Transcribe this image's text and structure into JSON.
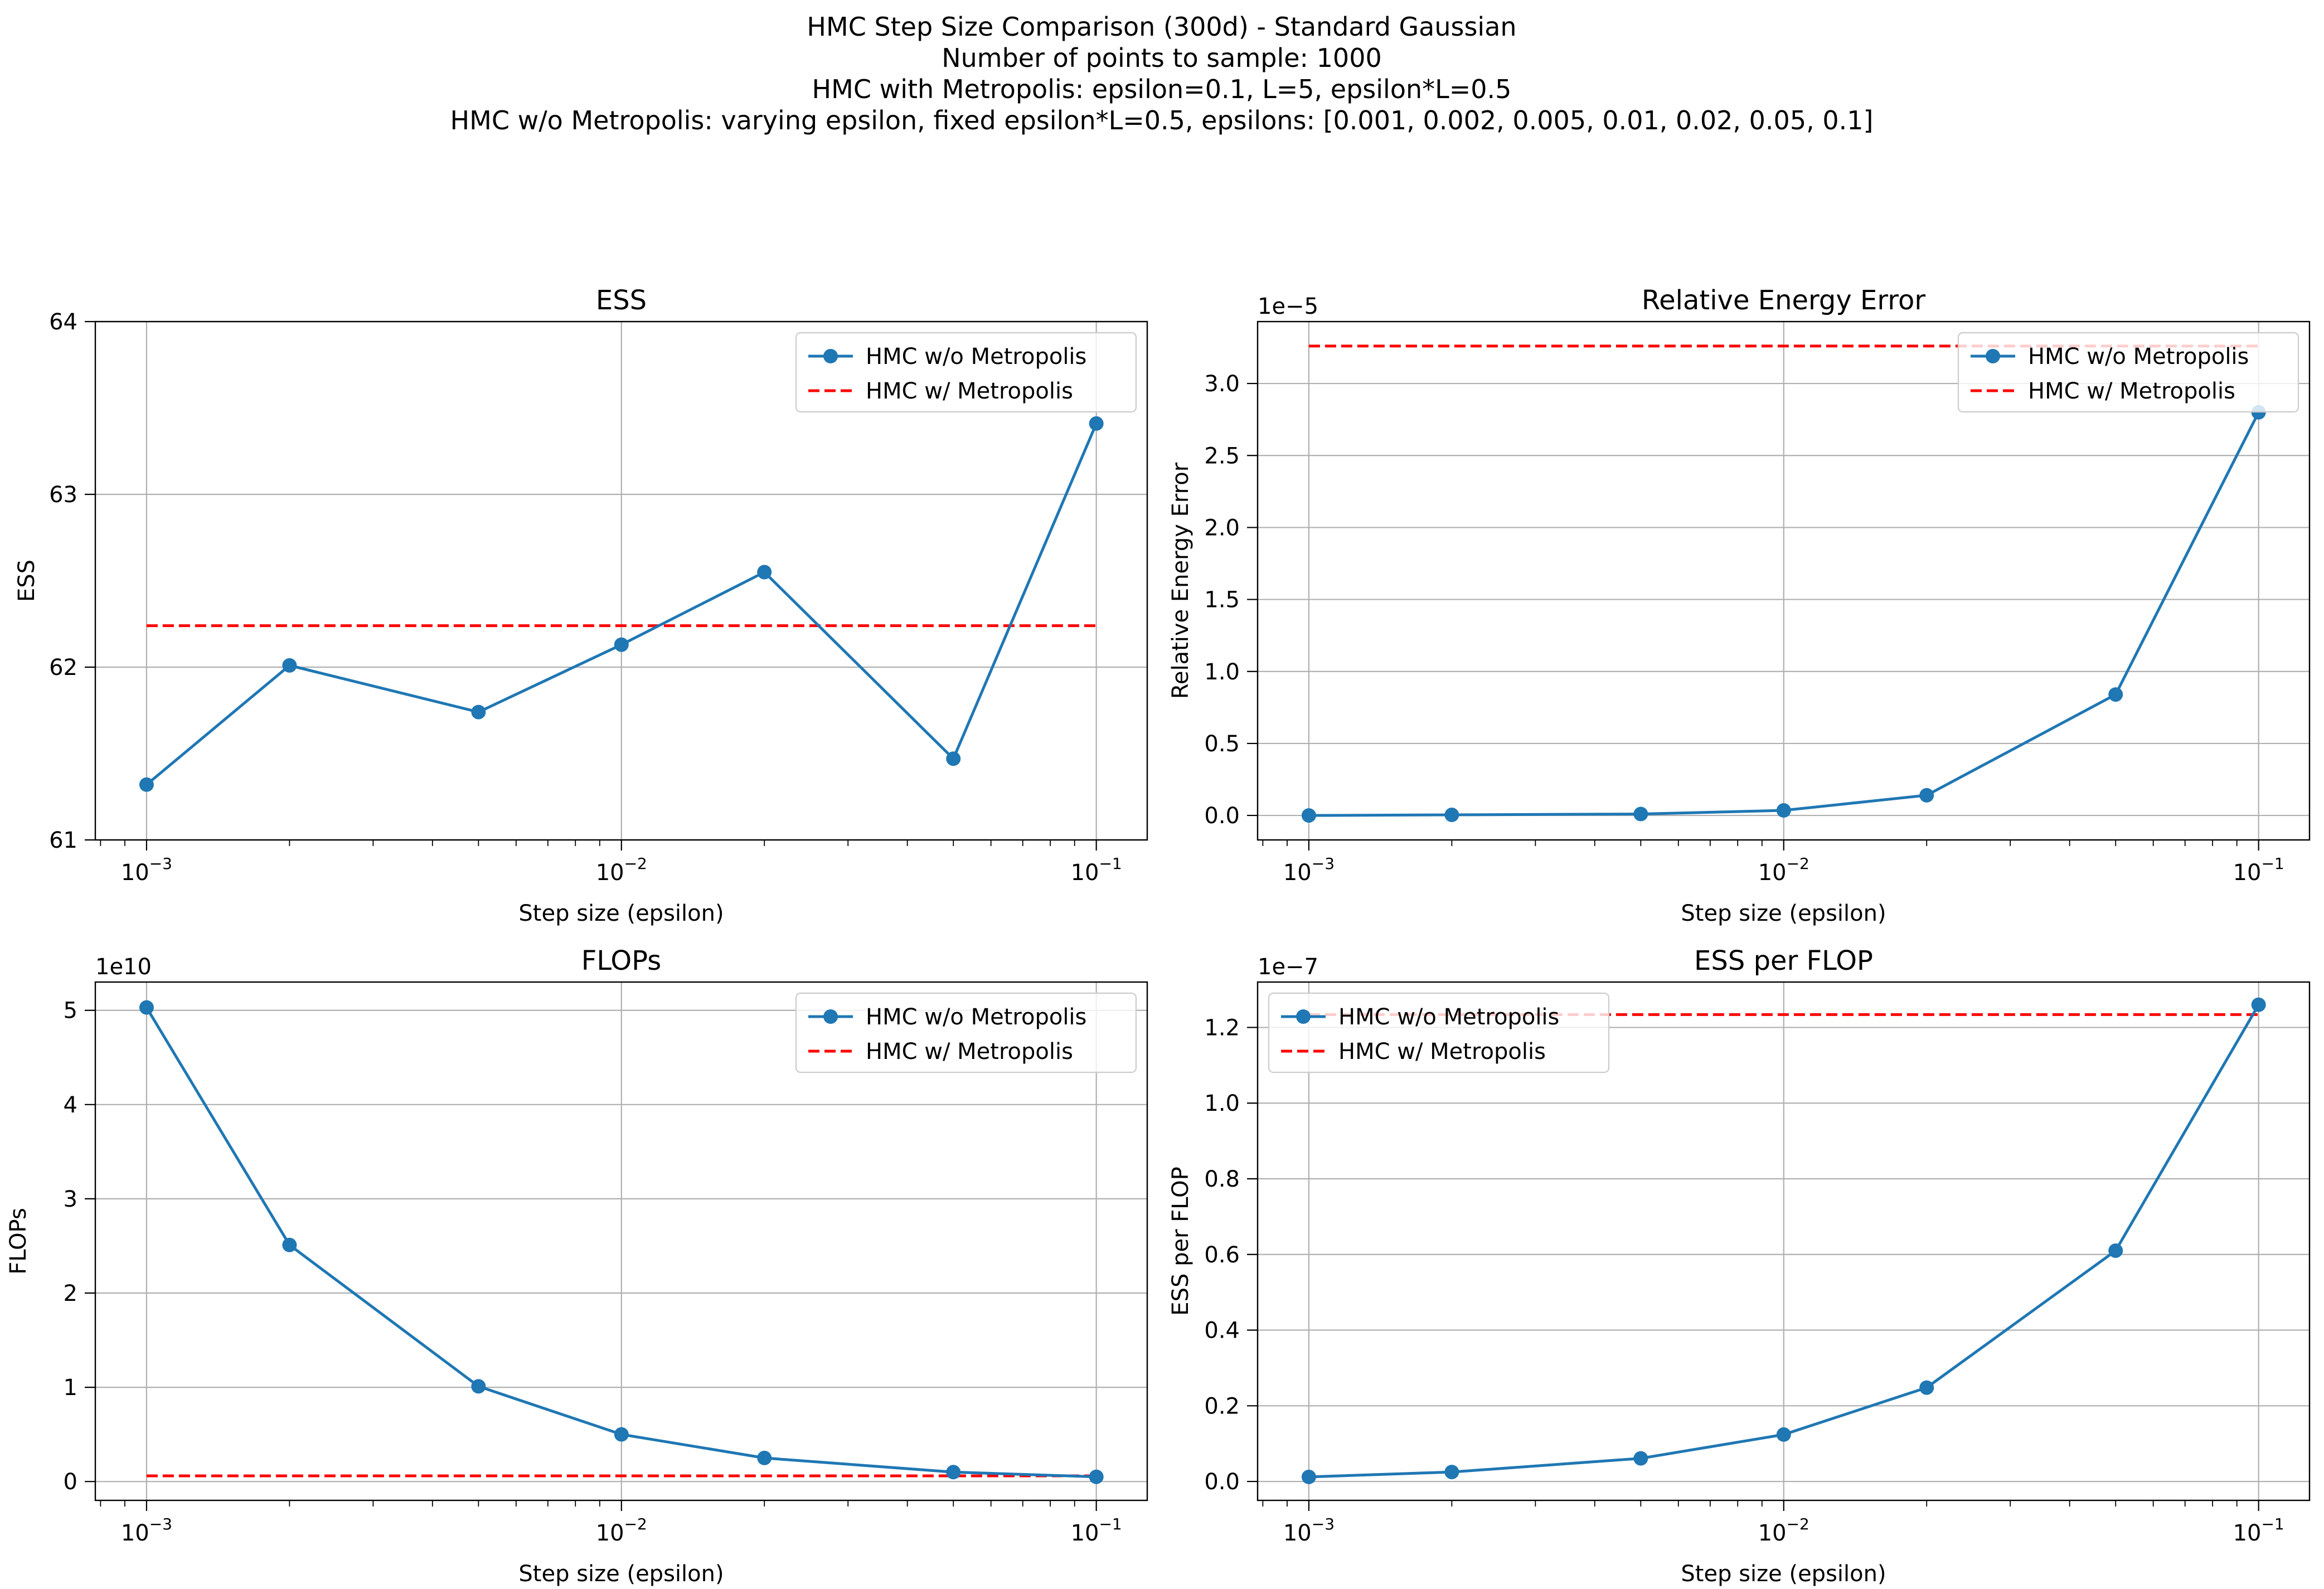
{
  "suptitle_lines": [
    "HMC Step Size Comparison (300d) - Standard Gaussian",
    "Number of points to sample: 1000",
    "HMC with Metropolis: epsilon=0.1, L=5, epsilon*L=0.5",
    "HMC w/o Metropolis: varying epsilon, fixed epsilon*L=0.5, epsilons: [0.001, 0.002, 0.005, 0.01, 0.02, 0.05, 0.1]"
  ],
  "colors": {
    "series": "#1f77b4",
    "baseline": "#ff0000",
    "grid": "#b0b0b0"
  },
  "chart_data": [
    {
      "type": "line",
      "title": "ESS",
      "xlabel": "Step size (epsilon)",
      "ylabel": "ESS",
      "xscale": "log",
      "xlim": [
        0.00078,
        0.128
      ],
      "ylim": [
        61,
        64
      ],
      "yticks": [
        61,
        62,
        63,
        64
      ],
      "ytick_labels": [
        "61",
        "62",
        "63",
        "64"
      ],
      "xticks": [
        0.001,
        0.01,
        0.1
      ],
      "xtick_labels": [
        [
          "10",
          "−3"
        ],
        [
          "10",
          "−2"
        ],
        [
          "10",
          "−1"
        ]
      ],
      "offset_text": "",
      "grid": true,
      "legend_position": "upper right",
      "x": [
        0.001,
        0.002,
        0.005,
        0.01,
        0.02,
        0.05,
        0.1
      ],
      "series": [
        {
          "name": "HMC w/o Metropolis",
          "style": "solid-markers",
          "values": [
            61.32,
            62.01,
            61.74,
            62.13,
            62.55,
            61.47,
            63.41
          ]
        },
        {
          "name": "HMC w/ Metropolis",
          "style": "dashed",
          "values": [
            62.24,
            62.24,
            62.24,
            62.24,
            62.24,
            62.24,
            62.24
          ]
        }
      ]
    },
    {
      "type": "line",
      "title": "Relative Energy Error",
      "xlabel": "Step size (epsilon)",
      "ylabel": "Relative Energy Error",
      "xscale": "log",
      "xlim": [
        0.00078,
        0.128
      ],
      "ylim": [
        -0.17,
        3.43
      ],
      "yticks": [
        0,
        0.5,
        1.0,
        1.5,
        2.0,
        2.5,
        3.0
      ],
      "ytick_labels": [
        "0.0",
        "0.5",
        "1.0",
        "1.5",
        "2.0",
        "2.5",
        "3.0"
      ],
      "xticks": [
        0.001,
        0.01,
        0.1
      ],
      "xtick_labels": [
        [
          "10",
          "−3"
        ],
        [
          "10",
          "−2"
        ],
        [
          "10",
          "−1"
        ]
      ],
      "offset_text": "1e−5",
      "grid": true,
      "legend_position": "upper right",
      "x": [
        0.001,
        0.002,
        0.005,
        0.01,
        0.02,
        0.05,
        0.1
      ],
      "series": [
        {
          "name": "HMC w/o Metropolis",
          "style": "solid-markers",
          "values": [
            0.0,
            0.004,
            0.01,
            0.035,
            0.14,
            0.84,
            2.8
          ]
        },
        {
          "name": "HMC w/ Metropolis",
          "style": "dashed",
          "values": [
            3.26,
            3.26,
            3.26,
            3.26,
            3.26,
            3.26,
            3.26
          ]
        }
      ]
    },
    {
      "type": "line",
      "title": "FLOPs",
      "xlabel": "Step size (epsilon)",
      "ylabel": "FLOPs",
      "xscale": "log",
      "xlim": [
        0.00078,
        0.128
      ],
      "ylim": [
        -0.2,
        5.3
      ],
      "yticks": [
        0,
        1,
        2,
        3,
        4,
        5
      ],
      "ytick_labels": [
        "0",
        "1",
        "2",
        "3",
        "4",
        "5"
      ],
      "xticks": [
        0.001,
        0.01,
        0.1
      ],
      "xtick_labels": [
        [
          "10",
          "−3"
        ],
        [
          "10",
          "−2"
        ],
        [
          "10",
          "−1"
        ]
      ],
      "offset_text": "1e10",
      "grid": true,
      "legend_position": "upper right",
      "x": [
        0.001,
        0.002,
        0.005,
        0.01,
        0.02,
        0.05,
        0.1
      ],
      "series": [
        {
          "name": "HMC w/o Metropolis",
          "style": "solid-markers",
          "values": [
            5.03,
            2.51,
            1.01,
            0.5,
            0.25,
            0.1,
            0.05
          ]
        },
        {
          "name": "HMC w/ Metropolis",
          "style": "dashed",
          "values": [
            0.06,
            0.06,
            0.06,
            0.06,
            0.06,
            0.06,
            0.06
          ]
        }
      ]
    },
    {
      "type": "line",
      "title": "ESS per FLOP",
      "xlabel": "Step size (epsilon)",
      "ylabel": "ESS per FLOP",
      "xscale": "log",
      "xlim": [
        0.00078,
        0.128
      ],
      "ylim": [
        -0.05,
        1.32
      ],
      "yticks": [
        0,
        0.2,
        0.4,
        0.6,
        0.8,
        1.0,
        1.2
      ],
      "ytick_labels": [
        "0.0",
        "0.2",
        "0.4",
        "0.6",
        "0.8",
        "1.0",
        "1.2"
      ],
      "xticks": [
        0.001,
        0.01,
        0.1
      ],
      "xtick_labels": [
        [
          "10",
          "−3"
        ],
        [
          "10",
          "−2"
        ],
        [
          "10",
          "−1"
        ]
      ],
      "offset_text": "1e−7",
      "grid": true,
      "legend_position": "upper left",
      "x": [
        0.001,
        0.002,
        0.005,
        0.01,
        0.02,
        0.05,
        0.1
      ],
      "series": [
        {
          "name": "HMC w/o Metropolis",
          "style": "solid-markers",
          "values": [
            0.012,
            0.025,
            0.061,
            0.124,
            0.248,
            0.61,
            1.26
          ]
        },
        {
          "name": "HMC w/ Metropolis",
          "style": "dashed",
          "values": [
            1.234,
            1.234,
            1.234,
            1.234,
            1.234,
            1.234,
            1.234
          ]
        }
      ]
    }
  ]
}
